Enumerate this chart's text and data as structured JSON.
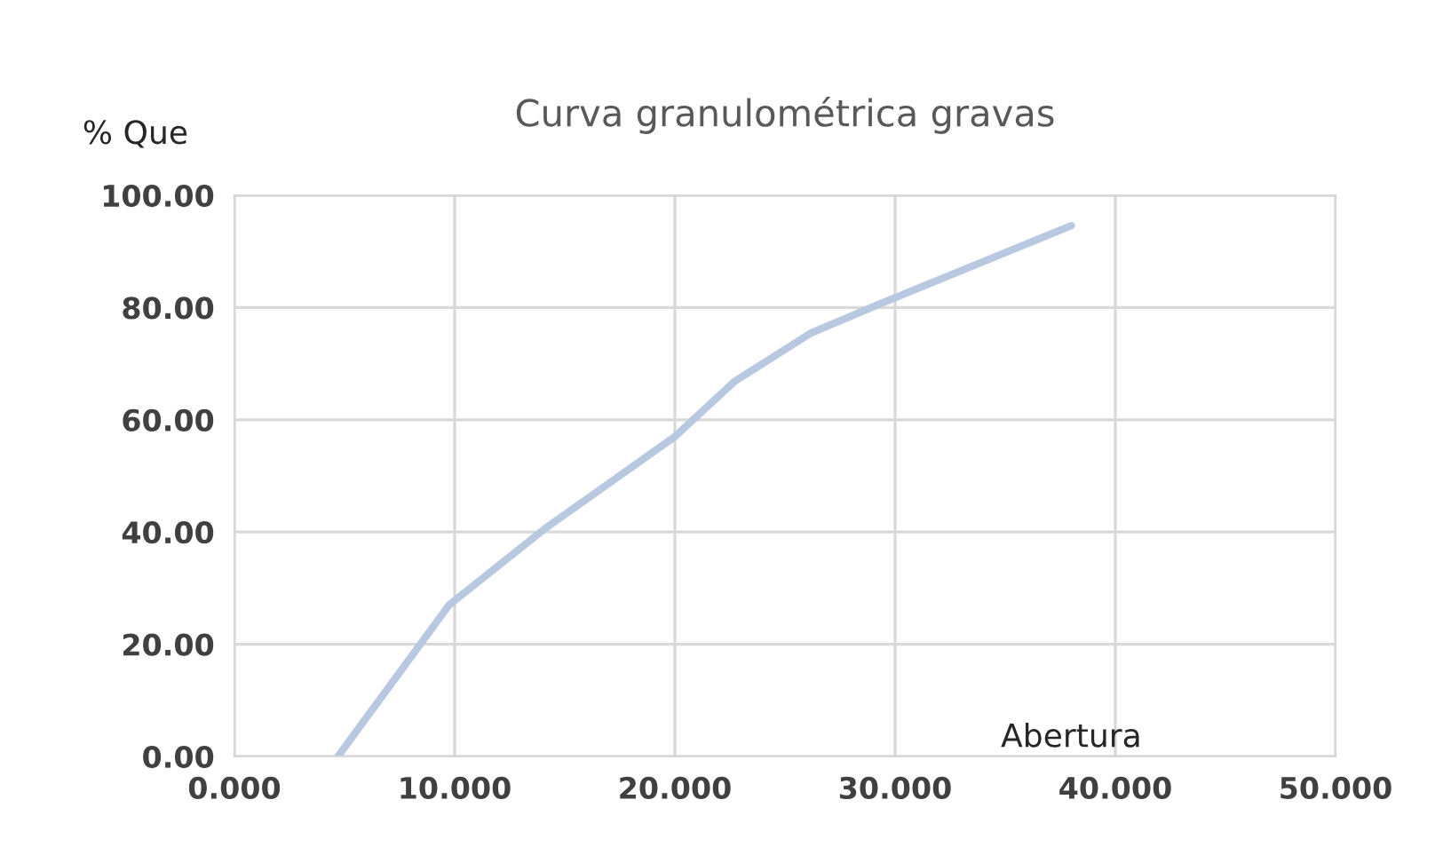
{
  "chart_data": {
    "type": "line",
    "title": "Curva granulométrica gravas",
    "xlabel": "Abertura",
    "ylabel": "% Que",
    "series": [
      {
        "color": "#b8c8e0",
        "x": [
          4.7,
          9.75,
          14.1,
          20.0,
          22.7,
          26.2,
          29.4,
          38.0
        ],
        "values": [
          0,
          27,
          40.6,
          57,
          66.8,
          75.5,
          80.8,
          94.6
        ]
      }
    ],
    "xlim": [
      0,
      50
    ],
    "xticks": [
      {
        "value": 0,
        "label": "0.000"
      },
      {
        "value": 10,
        "label": "10.000"
      },
      {
        "value": 20,
        "label": "20.000"
      },
      {
        "value": 30,
        "label": "30.000"
      },
      {
        "value": 40,
        "label": "40.000"
      },
      {
        "value": 50,
        "label": "50.000"
      }
    ],
    "ylim": [
      0,
      100
    ],
    "yticks": [
      {
        "value": 0,
        "label": "0.00"
      },
      {
        "value": 20,
        "label": "20.00"
      },
      {
        "value": 40,
        "label": "40.00"
      },
      {
        "value": 60,
        "label": "60.00"
      },
      {
        "value": 80,
        "label": "80.00"
      },
      {
        "value": 100,
        "label": "100.00"
      }
    ],
    "grid": true,
    "marker": "none",
    "line_style": "solid"
  }
}
